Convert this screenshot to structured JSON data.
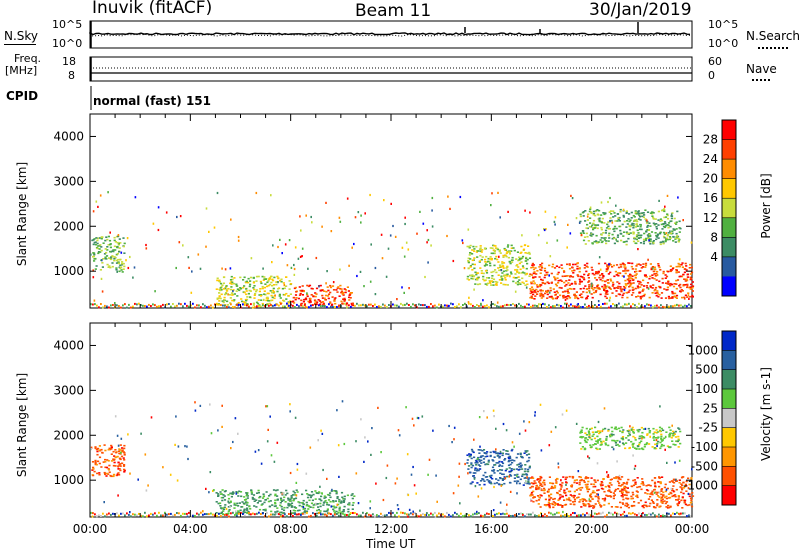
{
  "header": {
    "station": "Inuvik (fitACF)",
    "beam": "Beam 11",
    "date": "30/Jan/2019"
  },
  "noise_panel": {
    "left_label": "N.Sky",
    "left_ticks": [
      "10^5",
      "10^0"
    ],
    "right_label": "N.Search",
    "right_ticks": [
      "10^5",
      "10^0"
    ]
  },
  "freq_panel": {
    "left_label_top": "Freq.",
    "left_label_unit": "[MHz]",
    "left_ticks": [
      "18",
      "8"
    ],
    "right_label": "Nave",
    "right_ticks": [
      "60",
      "0"
    ]
  },
  "cpid": {
    "label": "CPID",
    "value": "normal (fast) 151"
  },
  "chart_data": [
    {
      "type": "heatmap",
      "panel": "power",
      "ylabel": "Slant Range [km]",
      "xlabel": "Time UT",
      "ylim": [
        180,
        4500
      ],
      "x_ticks": [
        "00:00",
        "04:00",
        "08:00",
        "12:00",
        "16:00",
        "20:00",
        "00:00"
      ],
      "y_ticks": [
        "1000",
        "2000",
        "3000",
        "4000"
      ],
      "colorbar_label": "Power [dB]",
      "colorbar_ticks": [
        "28",
        "24",
        "20",
        "16",
        "12",
        "8",
        "4"
      ],
      "colorbar_colors": [
        "#ff0000",
        "#ff4000",
        "#ff8c00",
        "#ffc800",
        "#c8dc3c",
        "#50b040",
        "#3c8c64",
        "#285aa0",
        "#0000ff"
      ],
      "regions": [
        {
          "x": [
            0.05,
            1.35
          ],
          "y": [
            1000,
            1800
          ],
          "value": 12
        },
        {
          "x": [
            5.0,
            8.0
          ],
          "y": [
            250,
            900
          ],
          "value": 16
        },
        {
          "x": [
            8.0,
            10.5
          ],
          "y": [
            250,
            700
          ],
          "value": 28
        },
        {
          "x": [
            15.0,
            17.5
          ],
          "y": [
            700,
            1600
          ],
          "value": 16
        },
        {
          "x": [
            17.5,
            24.0
          ],
          "y": [
            400,
            1200
          ],
          "value": 28
        },
        {
          "x": [
            19.5,
            23.5
          ],
          "y": [
            1600,
            2400
          ],
          "value": 12
        }
      ]
    },
    {
      "type": "heatmap",
      "panel": "velocity",
      "ylabel": "Slant Range [km]",
      "xlabel": "Time UT",
      "ylim": [
        180,
        4500
      ],
      "x_ticks": [
        "00:00",
        "04:00",
        "08:00",
        "12:00",
        "16:00",
        "20:00",
        "00:00"
      ],
      "y_ticks": [
        "1000",
        "2000",
        "3000",
        "4000"
      ],
      "colorbar_label": "Velocity [m s-1]",
      "colorbar_ticks": [
        "1000",
        "500",
        "100",
        "25",
        "-25",
        "-100",
        "-500",
        "-1000"
      ],
      "colorbar_colors": [
        "#0028c8",
        "#2860a0",
        "#3c8c64",
        "#5cc83c",
        "#c8c8c8",
        "#ffc800",
        "#ff9600",
        "#ff5000",
        "#ff0000"
      ],
      "regions": [
        {
          "x": [
            0.05,
            1.35
          ],
          "y": [
            1100,
            1800
          ],
          "value": -500
        },
        {
          "x": [
            5.0,
            10.5
          ],
          "y": [
            250,
            800
          ],
          "value": 100
        },
        {
          "x": [
            15.0,
            17.5
          ],
          "y": [
            900,
            1700
          ],
          "value": 500
        },
        {
          "x": [
            17.5,
            24.0
          ],
          "y": [
            400,
            1100
          ],
          "value": -500
        },
        {
          "x": [
            19.5,
            23.5
          ],
          "y": [
            1700,
            2200
          ],
          "value": 25
        }
      ]
    }
  ]
}
